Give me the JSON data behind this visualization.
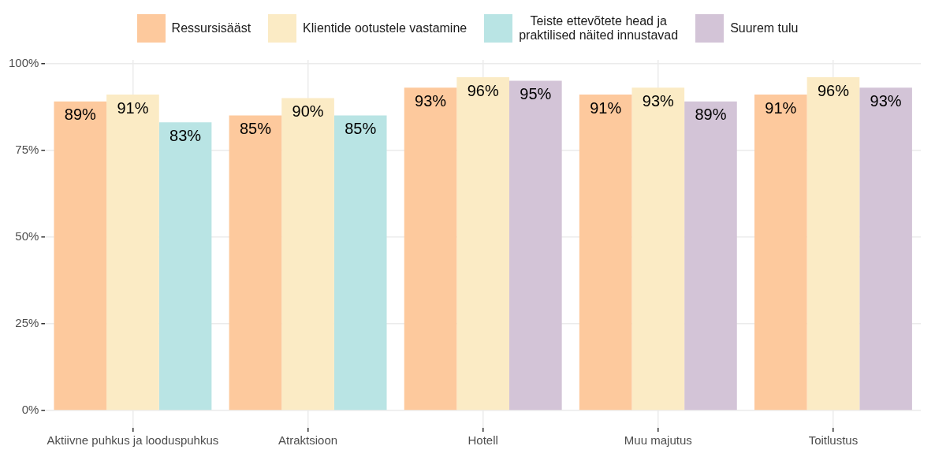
{
  "chart_data": {
    "type": "bar",
    "categories": [
      "Aktiivne puhkus ja looduspuhkus",
      "Atraktsioon",
      "Hotell",
      "Muu majutus",
      "Toitlustus"
    ],
    "series": [
      {
        "name": "Ressursisääst",
        "color": "#fdc99d",
        "values": [
          89,
          85,
          93,
          91,
          91
        ],
        "value_labels": [
          "89%",
          "85%",
          "93%",
          "91%",
          "91%"
        ]
      },
      {
        "name": "Klientide ootustele vastamine",
        "color": "#fbebc5",
        "values": [
          91,
          90,
          96,
          93,
          96
        ],
        "value_labels": [
          "91%",
          "90%",
          "96%",
          "93%",
          "96%"
        ]
      },
      {
        "name": "Teiste ettevõtete head ja\npraktilised näited innustavad",
        "color": "#b9e4e4",
        "values": [
          83,
          85,
          null,
          null,
          null
        ],
        "value_labels": [
          "83%",
          "85%",
          null,
          null,
          null
        ]
      },
      {
        "name": "Suurem tulu",
        "color": "#d3c4d7",
        "values": [
          null,
          null,
          95,
          89,
          93
        ],
        "value_labels": [
          null,
          null,
          "95%",
          "89%",
          "93%"
        ]
      }
    ],
    "ylim": [
      -5,
      101
    ],
    "yticks": [
      {
        "value": 0,
        "label": "0%"
      },
      {
        "value": 25,
        "label": "25%"
      },
      {
        "value": 50,
        "label": "50%"
      },
      {
        "value": 75,
        "label": "75%"
      },
      {
        "value": 100,
        "label": "100%"
      }
    ],
    "grid": true,
    "legend": "top"
  }
}
